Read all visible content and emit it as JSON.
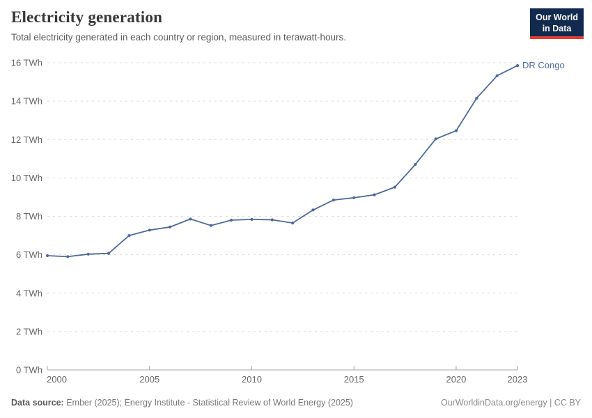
{
  "header": {
    "title": "Electricity generation",
    "subtitle": "Total electricity generated in each country or region, measured in terawatt-hours."
  },
  "logo": {
    "line1": "Our World",
    "line2": "in Data"
  },
  "footer": {
    "source_label": "Data source:",
    "source_text": " Ember (2025); Energy Institute - Statistical Review of World Energy (2025)",
    "credit": "OurWorldinData.org/energy | CC BY"
  },
  "colors": {
    "line": "#4c6a9c",
    "entity_label": "#4c6a9c",
    "grid": "#dcdcdc",
    "axis": "#a5a5a5",
    "tick_text": "#666666",
    "logo_bg": "#122a4e",
    "logo_accent": "#e23d32"
  },
  "chart_data": {
    "type": "line",
    "title": "Electricity generation",
    "unit": "terawatt-hours",
    "x": [
      2000,
      2001,
      2002,
      2003,
      2004,
      2005,
      2006,
      2007,
      2008,
      2009,
      2010,
      2011,
      2012,
      2013,
      2014,
      2015,
      2016,
      2017,
      2018,
      2019,
      2020,
      2021,
      2022,
      2023
    ],
    "series": [
      {
        "name": "DR Congo",
        "values": [
          5.95,
          5.9,
          6.03,
          6.07,
          7.0,
          7.28,
          7.44,
          7.86,
          7.52,
          7.8,
          7.84,
          7.82,
          7.65,
          8.33,
          8.85,
          8.97,
          9.12,
          9.52,
          10.7,
          12.03,
          12.46,
          14.15,
          15.32,
          15.85
        ]
      }
    ],
    "xlim": [
      2000,
      2023
    ],
    "ylim": [
      0,
      16
    ],
    "xticks": [
      2000,
      2005,
      2010,
      2015,
      2020,
      2023
    ],
    "yticks": [
      0,
      2,
      4,
      6,
      8,
      10,
      12,
      14,
      16
    ],
    "ytick_suffix": " TWh",
    "grid": true,
    "legend_position": "end-of-line-label"
  }
}
